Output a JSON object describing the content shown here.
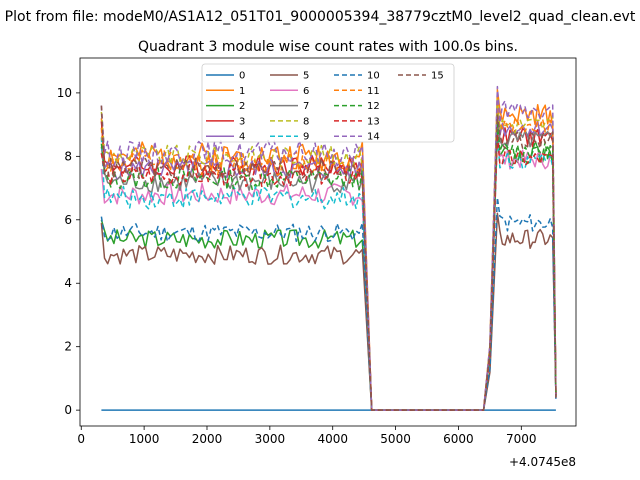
{
  "figure": {
    "suptitle": "Plot from file: modeM0/AS1A12_051T01_9000005394_38779cztM0_level2_quad_clean.evt",
    "offset_text": "+4.0745e8"
  },
  "chart_data": {
    "type": "line",
    "title": "Quadrant 3 module wise count rates with 100.0s bins.",
    "xlabel": "",
    "ylabel": "",
    "xlim": [
      -20,
      7870
    ],
    "ylim": [
      -0.5,
      11.1
    ],
    "xticks": [
      0,
      1000,
      2000,
      3000,
      4000,
      5000,
      6000,
      7000
    ],
    "yticks": [
      0,
      2,
      4,
      6,
      8,
      10
    ],
    "x_offset": 407450000,
    "grid": false,
    "legend_placement": "top-center",
    "legend_columns": 4,
    "segment_breaks": {
      "drop_start": 4500,
      "drop_end": 4620,
      "gap_end": 6400,
      "rise_end": 6620,
      "last_x": 7550
    },
    "series": [
      {
        "name": "0",
        "color": "#1f77b4",
        "dash": "solid",
        "base1": 0,
        "amp1": 0,
        "base2": 0,
        "amp2": 0,
        "start": 0,
        "seed": 1
      },
      {
        "name": "1",
        "color": "#ff7f0e",
        "dash": "solid",
        "base1": 8.0,
        "amp1": 0.45,
        "base2": 9.3,
        "amp2": 0.35,
        "start": 9.2,
        "seed": 2
      },
      {
        "name": "2",
        "color": "#2ca02c",
        "dash": "solid",
        "base1": 5.4,
        "amp1": 0.3,
        "base2": 8.0,
        "amp2": 0.35,
        "start": 6.0,
        "seed": 3
      },
      {
        "name": "3",
        "color": "#d62728",
        "dash": "solid",
        "base1": 7.7,
        "amp1": 0.35,
        "base2": 8.6,
        "amp2": 0.3,
        "start": 9.1,
        "seed": 4
      },
      {
        "name": "4",
        "color": "#9467bd",
        "dash": "solid",
        "base1": 7.6,
        "amp1": 0.35,
        "base2": 8.9,
        "amp2": 0.3,
        "start": 8.1,
        "seed": 5
      },
      {
        "name": "5",
        "color": "#8c564b",
        "dash": "solid",
        "base1": 4.9,
        "amp1": 0.3,
        "base2": 5.4,
        "amp2": 0.3,
        "start": 5.9,
        "seed": 6
      },
      {
        "name": "6",
        "color": "#e377c2",
        "dash": "solid",
        "base1": 6.8,
        "amp1": 0.35,
        "base2": 7.9,
        "amp2": 0.3,
        "start": 7.6,
        "seed": 7
      },
      {
        "name": "7",
        "color": "#7f7f7f",
        "dash": "solid",
        "base1": 7.2,
        "amp1": 0.35,
        "base2": 8.5,
        "amp2": 0.3,
        "start": 8.3,
        "seed": 8
      },
      {
        "name": "8",
        "color": "#bcbd22",
        "dash": "dashed",
        "base1": 8.0,
        "amp1": 0.35,
        "base2": 9.0,
        "amp2": 0.3,
        "start": 9.4,
        "seed": 9
      },
      {
        "name": "9",
        "color": "#17becf",
        "dash": "dashed",
        "base1": 6.7,
        "amp1": 0.35,
        "base2": 7.9,
        "amp2": 0.3,
        "start": 8.6,
        "seed": 10
      },
      {
        "name": "10",
        "color": "#1f77b4",
        "dash": "dashed",
        "base1": 5.6,
        "amp1": 0.3,
        "base2": 5.9,
        "amp2": 0.3,
        "start": 6.1,
        "seed": 11
      },
      {
        "name": "11",
        "color": "#ff7f0e",
        "dash": "dashed",
        "base1": 7.8,
        "amp1": 0.4,
        "base2": 9.0,
        "amp2": 0.3,
        "start": 8.9,
        "seed": 12
      },
      {
        "name": "12",
        "color": "#2ca02c",
        "dash": "dashed",
        "base1": 7.3,
        "amp1": 0.35,
        "base2": 8.2,
        "amp2": 0.3,
        "start": 8.4,
        "seed": 13
      },
      {
        "name": "13",
        "color": "#d62728",
        "dash": "dashed",
        "base1": 7.4,
        "amp1": 0.35,
        "base2": 7.9,
        "amp2": 0.3,
        "start": 8.1,
        "seed": 14
      },
      {
        "name": "14",
        "color": "#9467bd",
        "dash": "dashed",
        "base1": 8.1,
        "amp1": 0.4,
        "base2": 9.4,
        "amp2": 0.35,
        "start": 9.6,
        "seed": 15
      },
      {
        "name": "15",
        "color": "#8c564b",
        "dash": "dashed",
        "base1": 7.6,
        "amp1": 0.35,
        "base2": 8.5,
        "amp2": 0.3,
        "start": 9.6,
        "seed": 16
      }
    ]
  }
}
